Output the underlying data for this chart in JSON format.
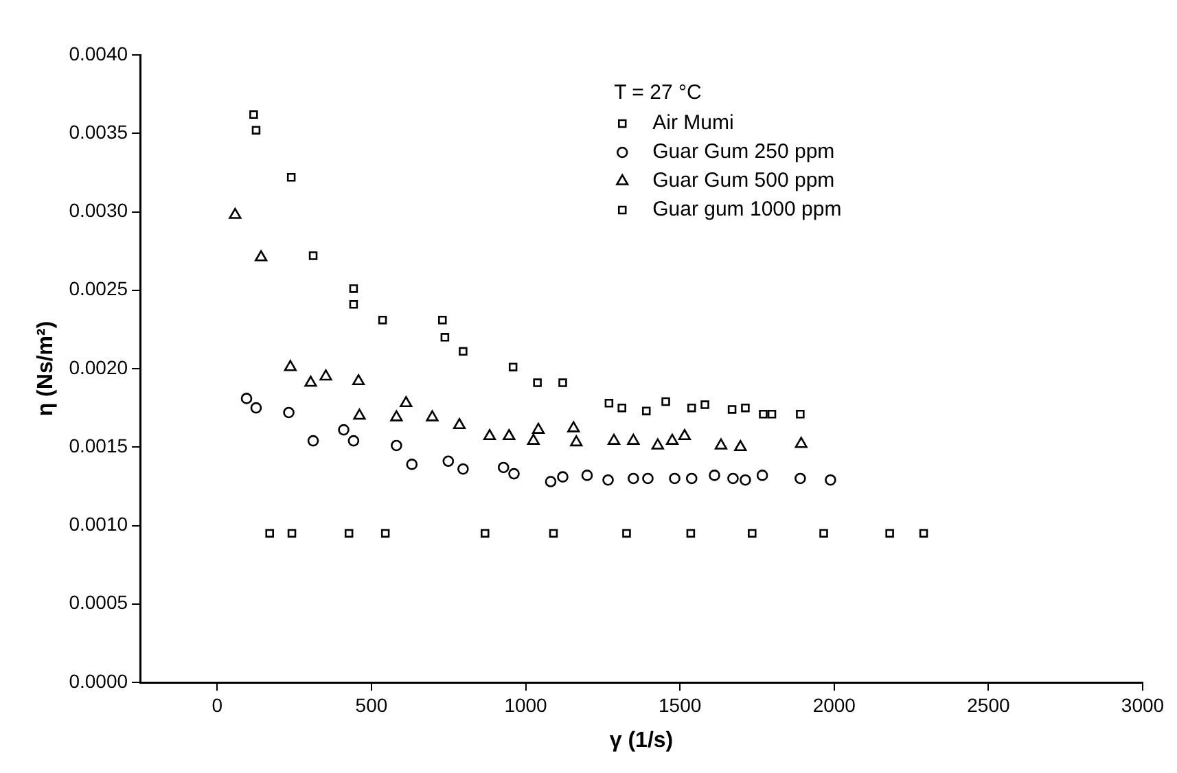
{
  "chart_data": {
    "type": "scatter",
    "xlabel": "γ (1/s)",
    "ylabel": "η (Ns/m²)",
    "legend_title": "T = 27 °C",
    "legend": "top right",
    "grid": false,
    "xlim": [
      -250,
      3000
    ],
    "xticks": [
      0,
      500,
      1000,
      1500,
      2000,
      2500,
      3000
    ],
    "ylim": [
      0,
      0.004
    ],
    "yticks": [
      {
        "value": 0,
        "label": "0.0000"
      },
      {
        "value": 0.0005,
        "label": "0.0005"
      },
      {
        "value": 0.001,
        "label": "0.0010"
      },
      {
        "value": 0.0015,
        "label": "0.0015"
      },
      {
        "value": 0.002,
        "label": "0.0020"
      },
      {
        "value": 0.0025,
        "label": "0.0025"
      },
      {
        "value": 0.003,
        "label": "0.0030"
      },
      {
        "value": 0.0035,
        "label": "0.0035"
      },
      {
        "value": 0.004,
        "label": "0.0040"
      }
    ],
    "series": [
      {
        "name": "Air Mumi",
        "color": "#000000",
        "marker": "square",
        "x": [
          170,
          242,
          427,
          545,
          868,
          1090,
          1327,
          1535,
          1734,
          1966,
          2180,
          2290
        ],
        "values": [
          0.00095,
          0.00095,
          0.00095,
          0.00095,
          0.00095,
          0.00095,
          0.00095,
          0.00095,
          0.00095,
          0.00095,
          0.00095,
          0.00095
        ]
      },
      {
        "name": "Guar Gum 250 ppm",
        "color": "#000000",
        "marker": "circle",
        "x": [
          95,
          126,
          232,
          311,
          410,
          442,
          581,
          631,
          749,
          797,
          928,
          962,
          1081,
          1120,
          1199,
          1267,
          1349,
          1396,
          1483,
          1538,
          1612,
          1672,
          1712,
          1767,
          1890,
          1988
        ],
        "values": [
          0.00181,
          0.00175,
          0.00172,
          0.00154,
          0.00161,
          0.00154,
          0.00151,
          0.00139,
          0.00141,
          0.00136,
          0.00137,
          0.00133,
          0.00128,
          0.00131,
          0.00132,
          0.00129,
          0.0013,
          0.0013,
          0.0013,
          0.0013,
          0.00132,
          0.0013,
          0.00129,
          0.00132,
          0.0013,
          0.00129
        ]
      },
      {
        "name": "Guar Gum 500 ppm",
        "color": "#000000",
        "marker": "triangle",
        "x": [
          58,
          142,
          237,
          303,
          352,
          458,
          461,
          581,
          612,
          697,
          785,
          883,
          946,
          1025,
          1041,
          1155,
          1164,
          1286,
          1349,
          1428,
          1475,
          1515,
          1633,
          1696,
          1893
        ],
        "values": [
          0.00298,
          0.00271,
          0.00201,
          0.00191,
          0.00195,
          0.00192,
          0.0017,
          0.00169,
          0.00178,
          0.00169,
          0.00164,
          0.00157,
          0.00157,
          0.00154,
          0.00161,
          0.00162,
          0.00153,
          0.00154,
          0.00154,
          0.00151,
          0.00154,
          0.00157,
          0.00151,
          0.0015,
          0.00152
        ]
      },
      {
        "name": "Guar gum 1000 ppm",
        "color": "#000000",
        "marker": "square",
        "x": [
          118,
          126,
          240,
          311,
          442,
          442,
          536,
          730,
          738,
          797,
          959,
          1038,
          1120,
          1270,
          1312,
          1391,
          1454,
          1538,
          1581,
          1669,
          1712,
          1770,
          1798,
          1890
        ],
        "values": [
          0.00362,
          0.00352,
          0.00322,
          0.00272,
          0.00251,
          0.00241,
          0.00231,
          0.00231,
          0.0022,
          0.00211,
          0.00201,
          0.00191,
          0.00191,
          0.00178,
          0.00175,
          0.00173,
          0.00179,
          0.00175,
          0.00177,
          0.00174,
          0.00175,
          0.00171,
          0.00171,
          0.00171
        ]
      }
    ]
  }
}
